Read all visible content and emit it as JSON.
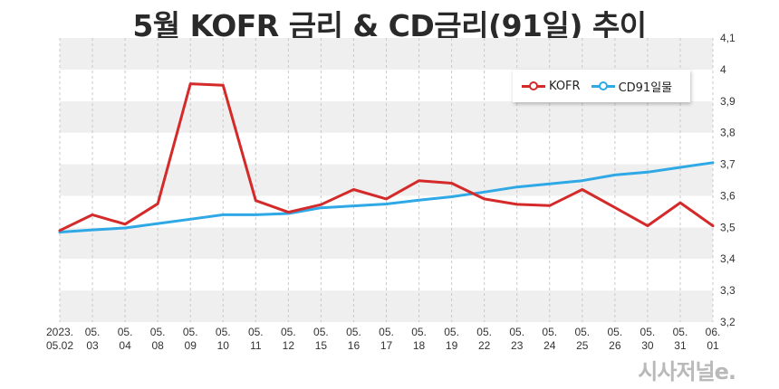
{
  "title": "5월 KOFR 금리 & CD금리(91일) 추이",
  "brand": "시사저널e.",
  "colors": {
    "kofr": "#d42a2a",
    "cd": "#2fa8e6",
    "band": "#efefef"
  },
  "chart_data": {
    "type": "line",
    "title": "5월 KOFR 금리 & CD금리(91일) 추이",
    "categories": [
      [
        "2023.",
        "05.02"
      ],
      [
        "05.",
        "03"
      ],
      [
        "05.",
        "04"
      ],
      [
        "05.",
        "08"
      ],
      [
        "05.",
        "09"
      ],
      [
        "05.",
        "10"
      ],
      [
        "05.",
        "11"
      ],
      [
        "05.",
        "12"
      ],
      [
        "05.",
        "15"
      ],
      [
        "05.",
        "16"
      ],
      [
        "05.",
        "17"
      ],
      [
        "05.",
        "18"
      ],
      [
        "05.",
        "19"
      ],
      [
        "05.",
        "22"
      ],
      [
        "05.",
        "23"
      ],
      [
        "05.",
        "24"
      ],
      [
        "05.",
        "25"
      ],
      [
        "05.",
        "26"
      ],
      [
        "05.",
        "30"
      ],
      [
        "05.",
        "31"
      ],
      [
        "06.",
        "01"
      ]
    ],
    "series": [
      {
        "name": "KOFR",
        "color": "#d42a2a",
        "values": [
          3.49,
          3.54,
          3.51,
          3.575,
          3.955,
          3.95,
          3.585,
          3.548,
          3.572,
          3.62,
          3.59,
          3.648,
          3.64,
          3.59,
          3.573,
          3.569,
          3.62,
          3.563,
          3.505,
          3.578,
          3.505
        ]
      },
      {
        "name": "CD91일물",
        "color": "#2fa8e6",
        "values": [
          3.485,
          3.492,
          3.498,
          3.512,
          3.526,
          3.54,
          3.54,
          3.544,
          3.562,
          3.568,
          3.574,
          3.586,
          3.597,
          3.612,
          3.628,
          3.638,
          3.648,
          3.666,
          3.675,
          3.69,
          3.705
        ]
      }
    ],
    "ylim": [
      3.2,
      4.1
    ],
    "yticks": [
      "3,2",
      "3,3",
      "3,4",
      "3,5",
      "3,6",
      "3,7",
      "3,8",
      "3,9",
      "4",
      "4,1"
    ],
    "grid": true,
    "legend_position": "top-right"
  }
}
